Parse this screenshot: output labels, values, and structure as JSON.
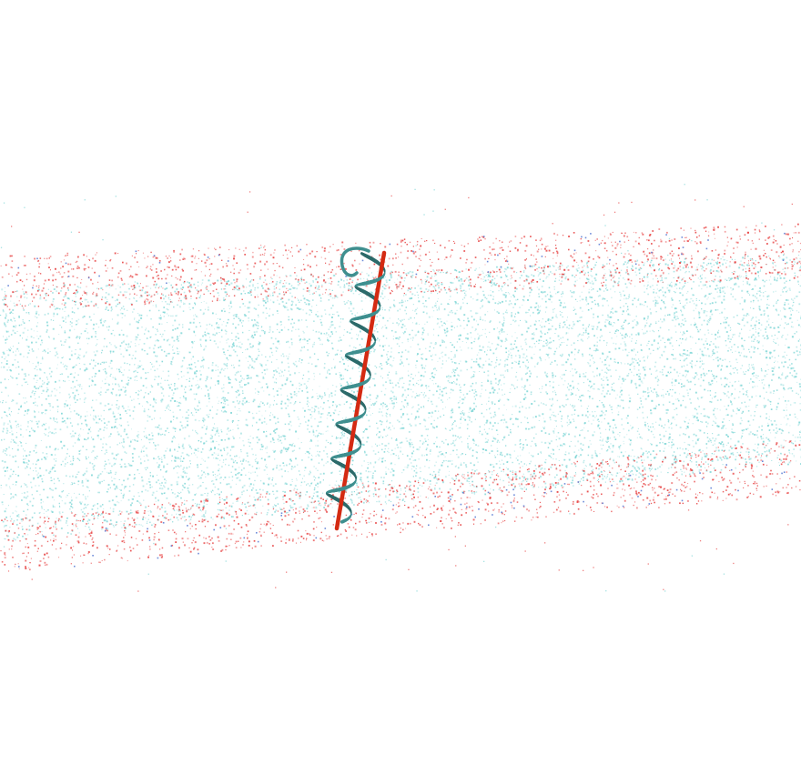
{
  "scene": {
    "subject": "molecular-render",
    "membrane": {
      "headgroup_color": "#e84a4a",
      "tail_color": "#7fd6d6",
      "phosphate_color": "#4a6fd0"
    },
    "helix": {
      "ribbon_color": "#3f8f8f",
      "ribbon_dark_color": "#2d6b6b"
    },
    "axis": {
      "color": "#d42a12"
    }
  }
}
